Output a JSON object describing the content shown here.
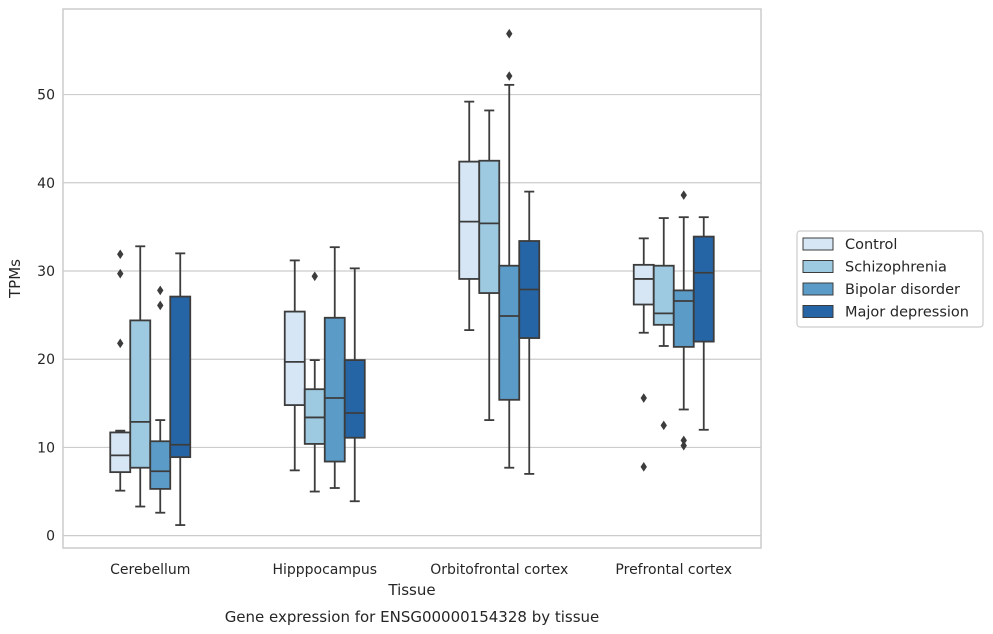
{
  "caption": "Gene expression for ENSG00000154328 by tissue",
  "chart_data": {
    "type": "box",
    "title": "",
    "xlabel": "Tissue",
    "ylabel": "TPMs",
    "ylim": [
      -1.4,
      59.7
    ],
    "yticks": [
      0,
      10,
      20,
      30,
      40,
      50
    ],
    "grid": "horizontal",
    "legend_position": "right",
    "categories": [
      "Cerebellum",
      "Hipppocampus",
      "Orbitofrontal cortex",
      "Prefrontal cortex"
    ],
    "series": [
      {
        "name": "Control",
        "color": "#d6e6f4",
        "boxes": [
          {
            "whisker_low": 5.1,
            "q1": 7.2,
            "median": 9.1,
            "q3": 11.7,
            "whisker_high": 11.9,
            "outliers": [
              21.8,
              29.7,
              31.9
            ]
          },
          {
            "whisker_low": 7.4,
            "q1": 14.8,
            "median": 19.7,
            "q3": 25.4,
            "whisker_high": 31.2,
            "outliers": []
          },
          {
            "whisker_low": 23.3,
            "q1": 29.1,
            "median": 35.6,
            "q3": 42.4,
            "whisker_high": 49.2,
            "outliers": []
          },
          {
            "whisker_low": 23.0,
            "q1": 26.2,
            "median": 29.1,
            "q3": 30.7,
            "whisker_high": 33.7,
            "outliers": [
              7.8,
              15.6
            ]
          }
        ]
      },
      {
        "name": "Schizophrenia",
        "color": "#9ecae1",
        "boxes": [
          {
            "whisker_low": 3.3,
            "q1": 7.7,
            "median": 12.9,
            "q3": 24.4,
            "whisker_high": 32.8,
            "outliers": []
          },
          {
            "whisker_low": 5.0,
            "q1": 10.4,
            "median": 13.4,
            "q3": 16.6,
            "whisker_high": 19.9,
            "outliers": [
              29.4
            ]
          },
          {
            "whisker_low": 13.1,
            "q1": 27.5,
            "median": 35.4,
            "q3": 42.5,
            "whisker_high": 48.2,
            "outliers": []
          },
          {
            "whisker_low": 21.5,
            "q1": 23.9,
            "median": 25.2,
            "q3": 30.6,
            "whisker_high": 36.0,
            "outliers": [
              12.5
            ]
          }
        ]
      },
      {
        "name": "Bipolar disorder",
        "color": "#5b9bc8",
        "boxes": [
          {
            "whisker_low": 2.6,
            "q1": 5.3,
            "median": 7.3,
            "q3": 10.7,
            "whisker_high": 13.1,
            "outliers": [
              26.1,
              27.8
            ]
          },
          {
            "whisker_low": 5.4,
            "q1": 8.4,
            "median": 15.6,
            "q3": 24.7,
            "whisker_high": 32.7,
            "outliers": []
          },
          {
            "whisker_low": 7.7,
            "q1": 15.4,
            "median": 24.9,
            "q3": 30.6,
            "whisker_high": 51.1,
            "outliers": [
              52.1,
              56.9
            ]
          },
          {
            "whisker_low": 14.3,
            "q1": 21.4,
            "median": 26.6,
            "q3": 27.8,
            "whisker_high": 36.1,
            "outliers": [
              10.2,
              10.8,
              38.6
            ]
          }
        ]
      },
      {
        "name": "Major depression",
        "color": "#2565a6",
        "boxes": [
          {
            "whisker_low": 1.2,
            "q1": 8.9,
            "median": 10.3,
            "q3": 27.1,
            "whisker_high": 32.0,
            "outliers": []
          },
          {
            "whisker_low": 3.9,
            "q1": 11.1,
            "median": 13.9,
            "q3": 19.9,
            "whisker_high": 30.3,
            "outliers": []
          },
          {
            "whisker_low": 7.0,
            "q1": 22.4,
            "median": 27.9,
            "q3": 33.4,
            "whisker_high": 39.0,
            "outliers": []
          },
          {
            "whisker_low": 12.0,
            "q1": 22.0,
            "median": 29.8,
            "q3": 33.9,
            "whisker_high": 36.1,
            "outliers": []
          }
        ]
      }
    ]
  }
}
